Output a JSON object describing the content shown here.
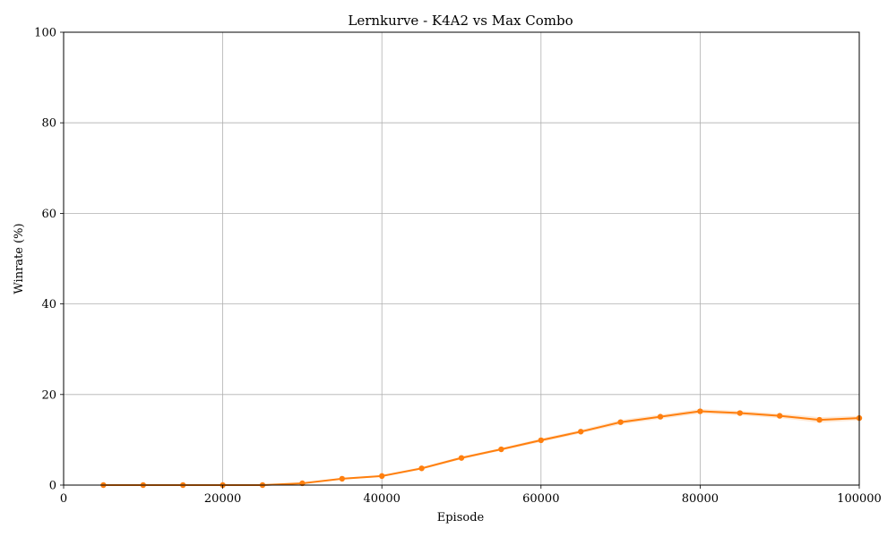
{
  "chart_data": {
    "type": "line",
    "title": "Lernkurve - K4A2 vs Max Combo",
    "xlabel": "Episode",
    "ylabel": "Winrate (%)",
    "xlim": [
      0,
      100000
    ],
    "ylim": [
      0,
      100
    ],
    "xticks": [
      0,
      20000,
      40000,
      60000,
      80000,
      100000
    ],
    "yticks": [
      0,
      20,
      40,
      60,
      80,
      100
    ],
    "grid": true,
    "colors": {
      "line": "#ff7f0e",
      "band": "#ffbf86",
      "grid": "#b0b0b0"
    },
    "series": [
      {
        "x": [
          5000,
          10000,
          15000,
          20000,
          25000,
          30000,
          35000,
          40000,
          45000,
          50000,
          55000,
          60000,
          65000,
          70000,
          75000,
          80000,
          85000,
          90000,
          95000,
          100000
        ],
        "y": [
          0,
          0,
          0,
          0,
          0,
          0.4,
          1.4,
          2.0,
          3.7,
          6.0,
          7.9,
          9.9,
          11.8,
          13.9,
          15.1,
          16.3,
          15.9,
          15.3,
          14.4,
          14.8
        ],
        "band_low": [
          0,
          0,
          0,
          0,
          0,
          0.3,
          1.2,
          1.8,
          3.4,
          5.7,
          7.6,
          9.5,
          11.4,
          13.4,
          14.6,
          15.8,
          15.4,
          14.8,
          13.8,
          14.3
        ],
        "band_high": [
          0,
          0,
          0,
          0,
          0,
          0.5,
          1.6,
          2.2,
          4.0,
          6.3,
          8.2,
          10.3,
          12.2,
          14.4,
          15.6,
          16.8,
          16.4,
          15.8,
          15.0,
          15.3
        ]
      }
    ]
  }
}
